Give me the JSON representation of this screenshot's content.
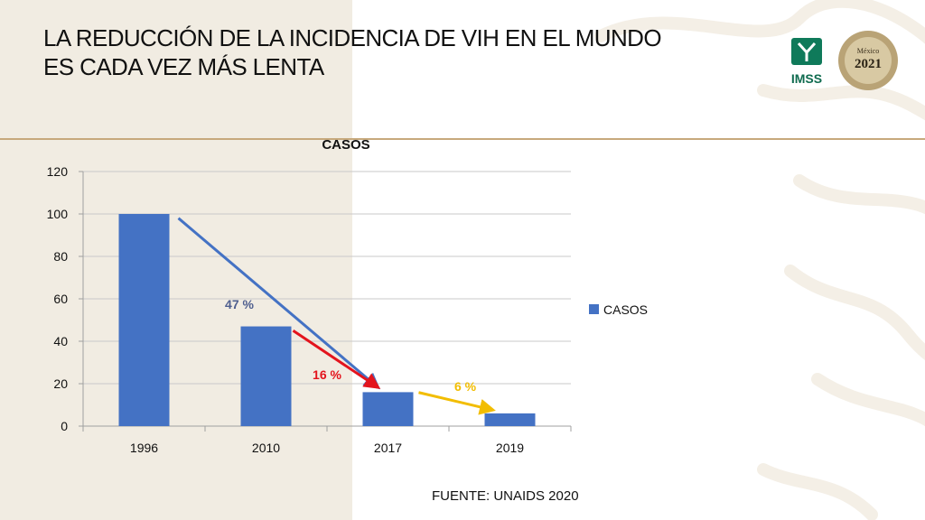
{
  "slide": {
    "title_line1": "LA REDUCCIÓN DE LA INCIDENCIA DE VIH EN EL MUNDO",
    "title_line2": "ES CADA VEZ MÁS LENTA",
    "source": "FUENTE: UNAIDS 2020",
    "logos": {
      "imss_text": "IMSS",
      "anniversary_year": "2021",
      "anniversary_top": "México"
    }
  },
  "chart_data": {
    "type": "bar",
    "title": "CASOS",
    "categories": [
      "1996",
      "2010",
      "2017",
      "2019"
    ],
    "series": [
      {
        "name": "CASOS",
        "values": [
          100,
          47,
          16,
          6
        ],
        "color": "#4472c4"
      }
    ],
    "ylim": [
      0,
      120
    ],
    "yticks": [
      0,
      20,
      40,
      60,
      80,
      100,
      120
    ],
    "grid": true,
    "legend": "right",
    "annotations": [
      {
        "text": "47 %",
        "color": "#4f5f8f",
        "arrow_color": "#4472c4",
        "from": [
          "1996",
          98
        ],
        "to": [
          "2017",
          16
        ]
      },
      {
        "text": "16 %",
        "color": "#e3141d",
        "arrow_color": "#e3141d",
        "from": [
          "2010",
          45
        ],
        "to": [
          "2017",
          16
        ]
      },
      {
        "text": "6 %",
        "color": "#f2bd00",
        "arrow_color": "#f2bd00",
        "from": [
          "2017",
          15
        ],
        "to": [
          "2019",
          6
        ]
      }
    ]
  }
}
